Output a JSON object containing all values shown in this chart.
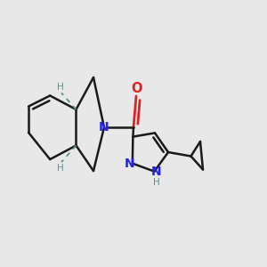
{
  "background_color": "#e8e8e8",
  "bond_color": "#1a1a1a",
  "bond_width": 1.8,
  "N_color": "#2222ee",
  "O_color": "#dd2222",
  "H_color": "#5a9090",
  "figsize": [
    3.0,
    3.0
  ],
  "dpi": 100,
  "xlim": [
    0.0,
    1.0
  ],
  "ylim": [
    0.0,
    1.0
  ]
}
